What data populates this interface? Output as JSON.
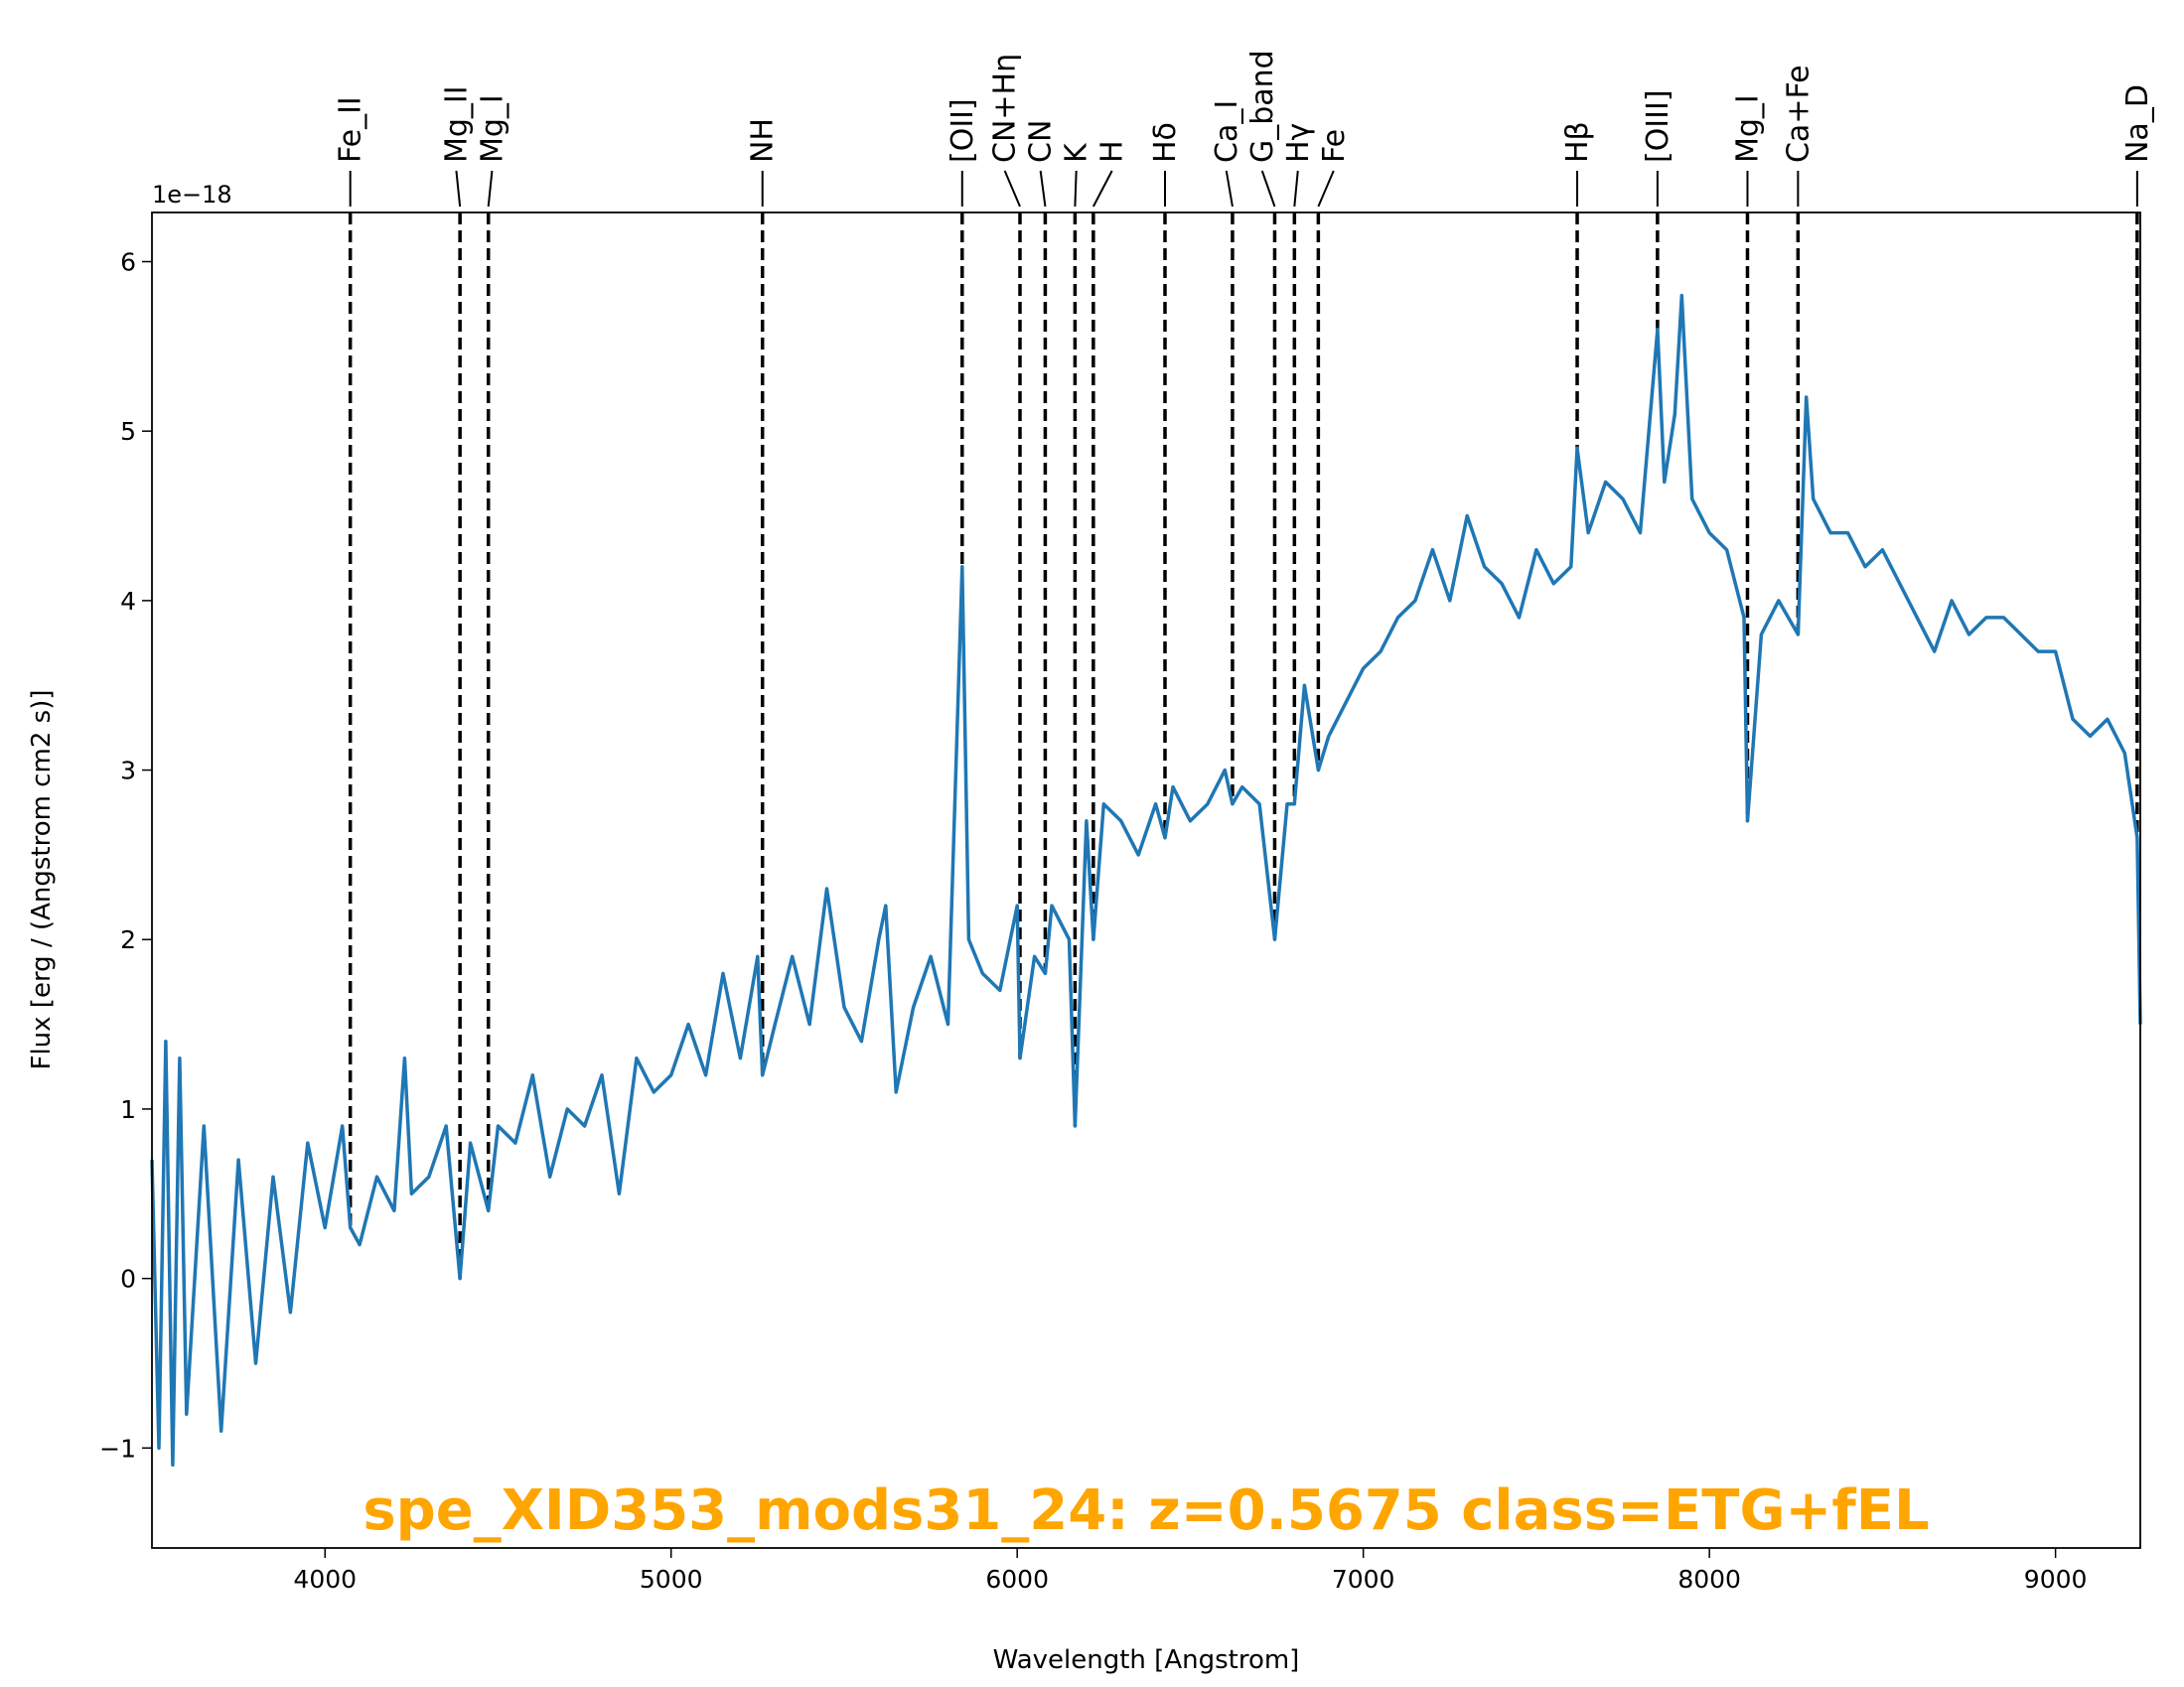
{
  "chart_data": {
    "type": "line",
    "title": "spe_XID353_mods31_24: z=0.5675 class=ETG+fEL",
    "xlabel": "Wavelength [Angstrom]",
    "ylabel": "Flux [erg / (Angstrom cm2 s)]",
    "offset_text": "1e−18",
    "x": [
      3500,
      3520,
      3540,
      3560,
      3580,
      3600,
      3650,
      3700,
      3750,
      3800,
      3850,
      3900,
      3950,
      4000,
      4050,
      4073,
      4100,
      4150,
      4200,
      4230,
      4250,
      4300,
      4350,
      4390,
      4420,
      4472,
      4500,
      4550,
      4600,
      4650,
      4700,
      4750,
      4800,
      4850,
      4900,
      4950,
      5000,
      5050,
      5100,
      5150,
      5200,
      5250,
      5264,
      5300,
      5350,
      5400,
      5450,
      5500,
      5550,
      5600,
      5620,
      5650,
      5700,
      5750,
      5800,
      5841,
      5860,
      5900,
      5950,
      6000,
      6008,
      6050,
      6081,
      6100,
      6150,
      6167,
      6200,
      6220,
      6250,
      6300,
      6350,
      6400,
      6427,
      6450,
      6500,
      6550,
      6600,
      6622,
      6650,
      6700,
      6744,
      6780,
      6801,
      6830,
      6870,
      6900,
      6950,
      7000,
      7050,
      7100,
      7150,
      7200,
      7250,
      7300,
      7350,
      7400,
      7450,
      7500,
      7550,
      7600,
      7618,
      7650,
      7700,
      7750,
      7800,
      7850,
      7870,
      7900,
      7920,
      7950,
      8000,
      8050,
      8100,
      8110,
      8150,
      8200,
      8256,
      8280,
      8300,
      8350,
      8400,
      8450,
      8500,
      8550,
      8600,
      8650,
      8700,
      8750,
      8800,
      8850,
      8900,
      8950,
      9000,
      9050,
      9100,
      9150,
      9200,
      9236,
      9245
    ],
    "series": [
      {
        "color": "#1f77b4",
        "values": [
          0.7,
          -1.0,
          1.4,
          -1.1,
          1.3,
          -0.8,
          0.9,
          -0.9,
          0.7,
          -0.5,
          0.6,
          -0.2,
          0.8,
          0.3,
          0.9,
          0.3,
          0.2,
          0.6,
          0.4,
          1.3,
          0.5,
          0.6,
          0.9,
          0.0,
          0.8,
          0.4,
          0.9,
          0.8,
          1.2,
          0.6,
          1.0,
          0.9,
          1.2,
          0.5,
          1.3,
          1.1,
          1.2,
          1.5,
          1.2,
          1.8,
          1.3,
          1.9,
          1.2,
          1.5,
          1.9,
          1.5,
          2.3,
          1.6,
          1.4,
          2.0,
          2.2,
          1.1,
          1.6,
          1.9,
          1.5,
          4.2,
          2.0,
          1.8,
          1.7,
          2.2,
          1.3,
          1.9,
          1.8,
          2.2,
          2.0,
          0.9,
          2.7,
          2.0,
          2.8,
          2.7,
          2.5,
          2.8,
          2.6,
          2.9,
          2.7,
          2.8,
          3.0,
          2.8,
          2.9,
          2.8,
          2.0,
          2.8,
          2.8,
          3.5,
          3.0,
          3.2,
          3.4,
          3.6,
          3.7,
          3.9,
          4.0,
          4.3,
          4.0,
          4.5,
          4.2,
          4.1,
          3.9,
          4.3,
          4.1,
          4.2,
          4.9,
          4.4,
          4.7,
          4.6,
          4.4,
          5.6,
          4.7,
          5.1,
          5.8,
          4.6,
          4.4,
          4.3,
          3.9,
          2.7,
          3.8,
          4.0,
          3.8,
          5.2,
          4.6,
          4.4,
          4.4,
          4.2,
          4.3,
          4.1,
          3.9,
          3.7,
          4.0,
          3.8,
          3.9,
          3.9,
          3.8,
          3.7,
          3.7,
          3.3,
          3.2,
          3.3,
          3.1,
          2.6,
          1.5
        ]
      }
    ],
    "xlim": [
      3500,
      9245
    ],
    "ylim": [
      -1.59,
      6.29
    ],
    "xticks": [
      4000,
      5000,
      6000,
      7000,
      8000,
      9000
    ],
    "yticks": [
      {
        "value": -1,
        "label": "−1"
      },
      0,
      1,
      2,
      3,
      4,
      5,
      6
    ],
    "title_color": "#ffa500",
    "line_marker_color": "#000000",
    "lines": [
      {
        "label": "Fe_II",
        "wavelength": 4073
      },
      {
        "label": "Mg_II",
        "wavelength": 4390
      },
      {
        "label": "Mg_I",
        "wavelength": 4472
      },
      {
        "label": "NH",
        "wavelength": 5264
      },
      {
        "label": "[OII]",
        "wavelength": 5841
      },
      {
        "label": "CN+Hη",
        "wavelength": 6008
      },
      {
        "label": "CN",
        "wavelength": 6081
      },
      {
        "label": "K",
        "wavelength": 6167
      },
      {
        "label": "H",
        "wavelength": 6220
      },
      {
        "label": "Hδ",
        "wavelength": 6427
      },
      {
        "label": "Ca_I",
        "wavelength": 6622
      },
      {
        "label": "G_band",
        "wavelength": 6744
      },
      {
        "label": "Hγ",
        "wavelength": 6801
      },
      {
        "label": "Fe",
        "wavelength": 6870
      },
      {
        "label": "Hβ",
        "wavelength": 7618
      },
      {
        "label": "[OIII]",
        "wavelength": 7850
      },
      {
        "label": "Mg_I",
        "wavelength": 8110
      },
      {
        "label": "Ca+Fe",
        "wavelength": 8256
      },
      {
        "label": "Na_D",
        "wavelength": 9236
      }
    ]
  }
}
